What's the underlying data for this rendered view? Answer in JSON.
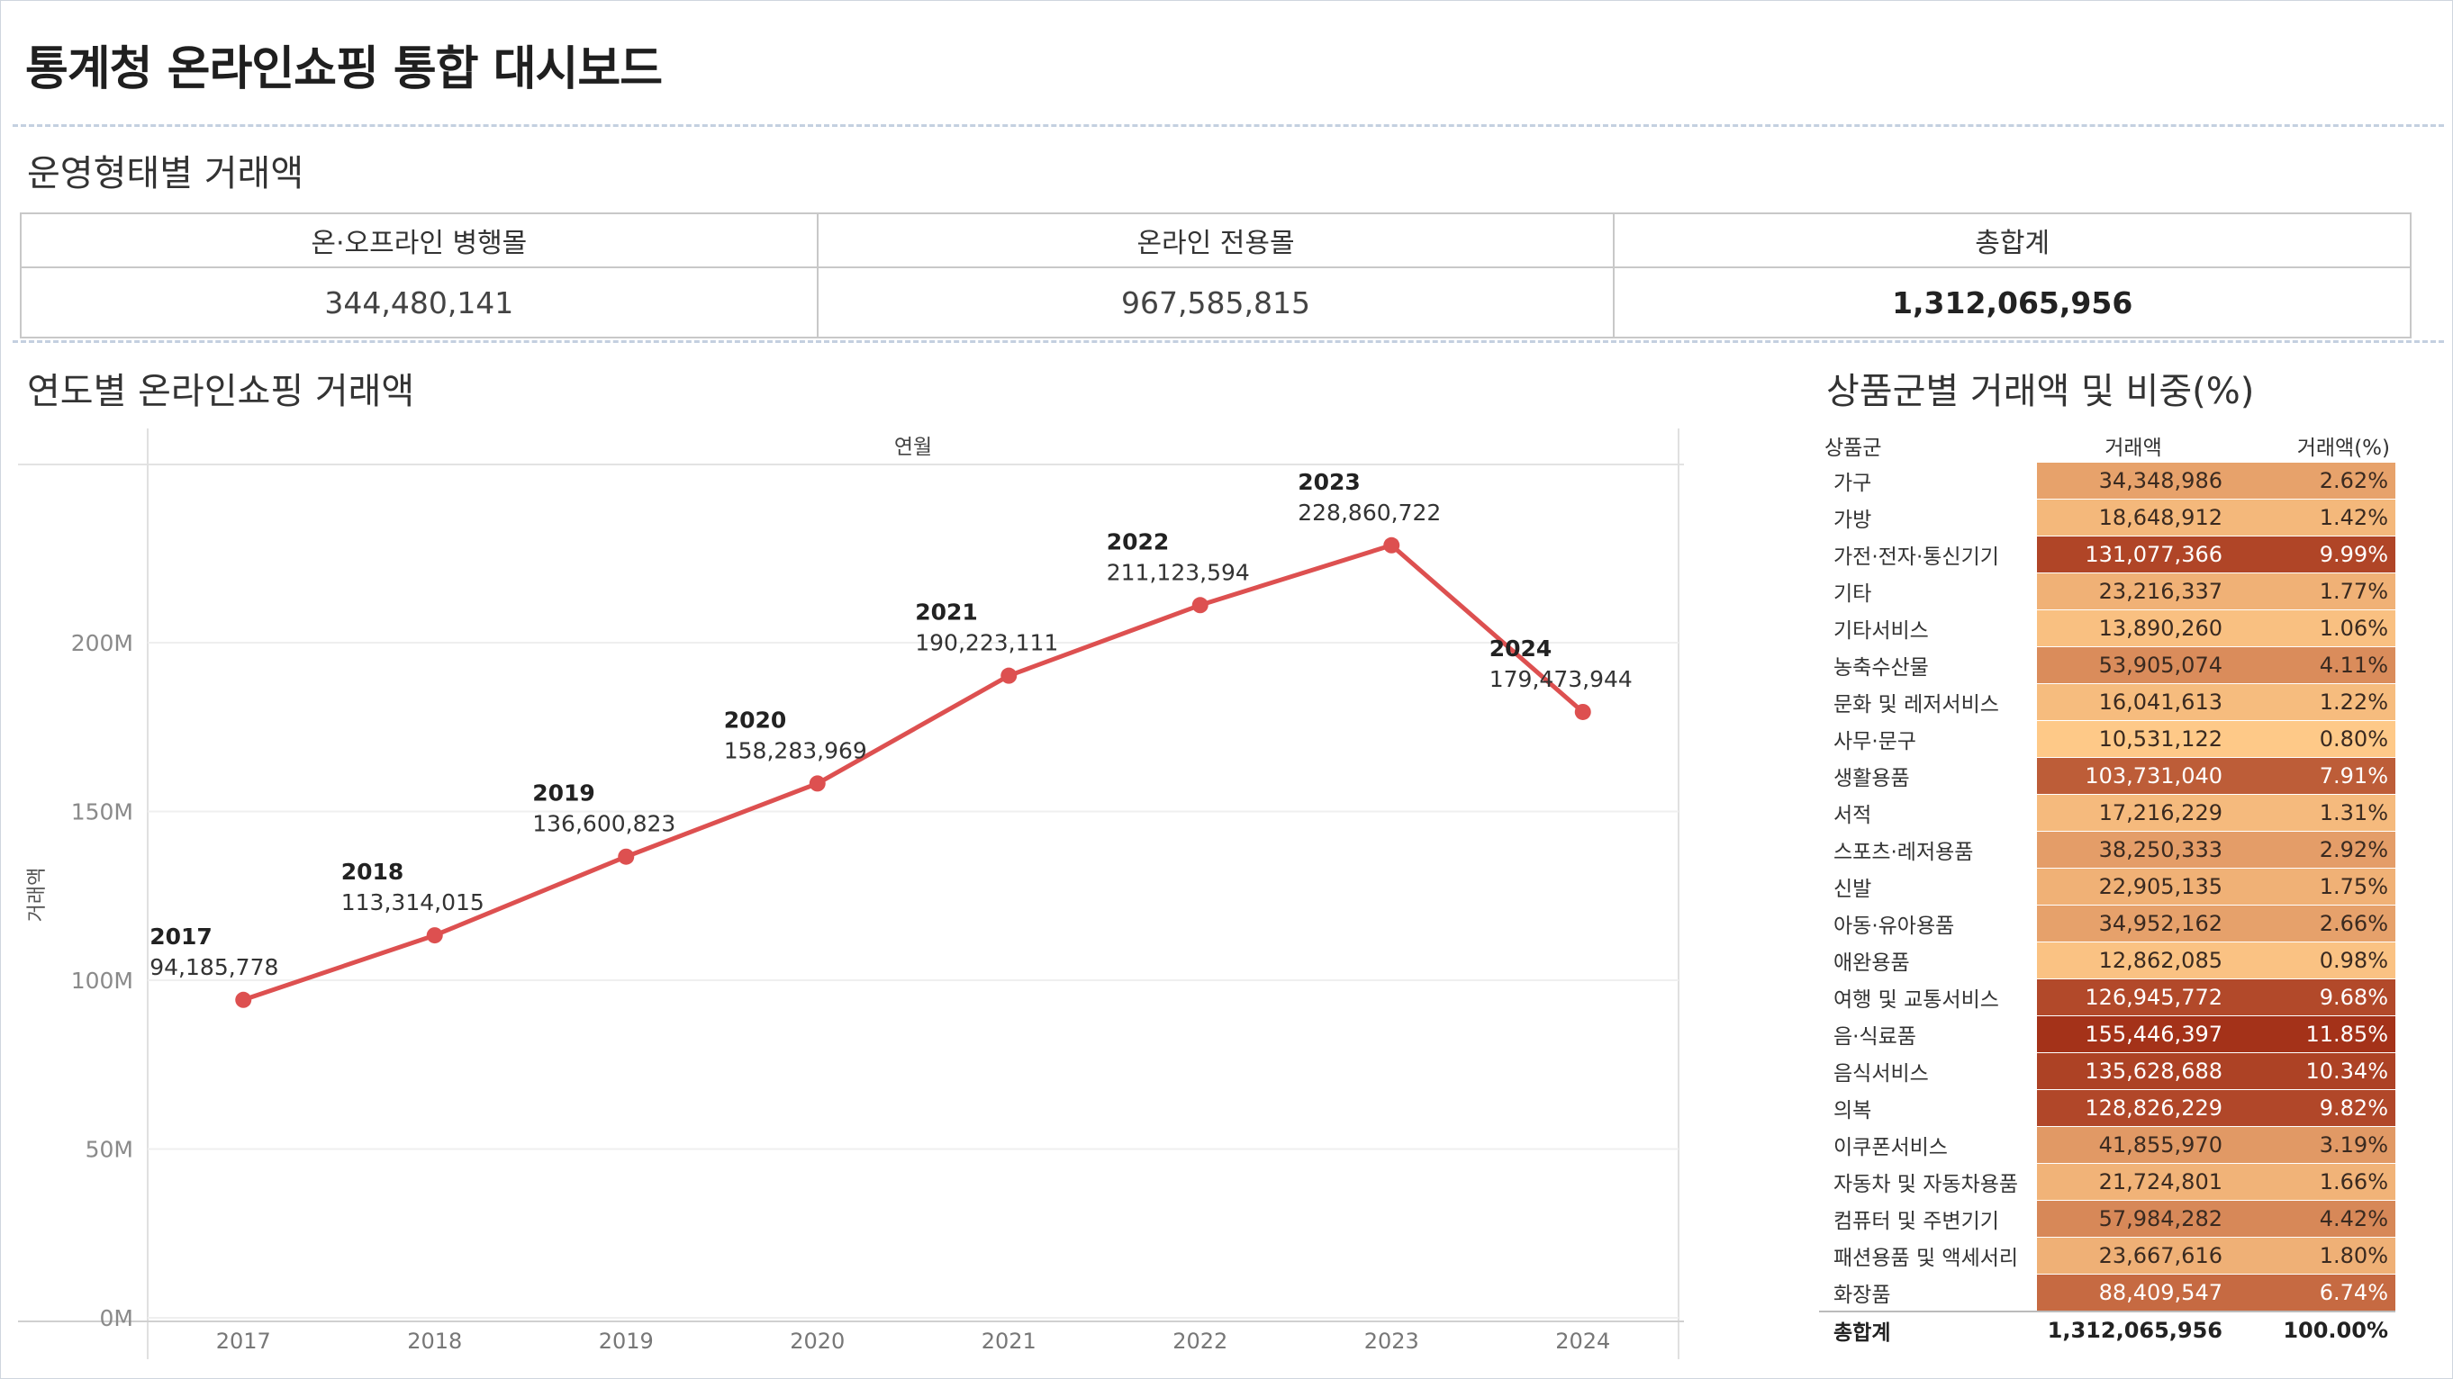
{
  "title": "통계청 온라인쇼핑 통합 대시보드",
  "kpi_section_title": "운영형태별 거래액",
  "kpi": [
    {
      "label": "온·오프라인 병행몰",
      "value": "344,480,141"
    },
    {
      "label": "온라인 전용몰",
      "value": "967,585,815"
    },
    {
      "label": "총합계",
      "value": "1,312,065,956"
    }
  ],
  "line_section_title": "연도별 온라인쇼핑 거래액",
  "category_section_title": "상품군별 거래액 및 비중(%)",
  "chart_data": [
    {
      "type": "line",
      "title": "연도별 온라인쇼핑 거래액",
      "column_header": "연월",
      "xlabel": "",
      "ylabel": "거래액",
      "x": [
        "2017",
        "2018",
        "2019",
        "2020",
        "2021",
        "2022",
        "2023",
        "2024"
      ],
      "series": [
        {
          "values": [
            94185778,
            113314015,
            136600823,
            158283969,
            190223111,
            211123594,
            228860722,
            179473944
          ],
          "labels": [
            "94,185,778",
            "113,314,015",
            "136,600,823",
            "158,283,969",
            "190,223,111",
            "211,123,594",
            "228,860,722",
            "179,473,944"
          ],
          "color": "#dd5050"
        }
      ],
      "ylim": [
        0,
        240000000
      ],
      "yticks": [
        0,
        50000000,
        100000000,
        150000000,
        200000000
      ],
      "ytick_labels": [
        "0M",
        "50M",
        "100M",
        "150M",
        "200M"
      ],
      "grid": true,
      "dual_axis": true
    },
    {
      "type": "table",
      "title": "상품군별 거래액 및 비중(%)",
      "columns": [
        "상품군",
        "거래액",
        "거래액(%)"
      ],
      "rows": [
        {
          "name": "가구",
          "amount": "34,348,986",
          "pct": "2.62%",
          "value": 34348986
        },
        {
          "name": "가방",
          "amount": "18,648,912",
          "pct": "1.42%",
          "value": 18648912
        },
        {
          "name": "가전·전자·통신기기",
          "amount": "131,077,366",
          "pct": "9.99%",
          "value": 131077366
        },
        {
          "name": "기타",
          "amount": "23,216,337",
          "pct": "1.77%",
          "value": 23216337
        },
        {
          "name": "기타서비스",
          "amount": "13,890,260",
          "pct": "1.06%",
          "value": 13890260
        },
        {
          "name": "농축수산물",
          "amount": "53,905,074",
          "pct": "4.11%",
          "value": 53905074
        },
        {
          "name": "문화 및 레저서비스",
          "amount": "16,041,613",
          "pct": "1.22%",
          "value": 16041613
        },
        {
          "name": "사무·문구",
          "amount": "10,531,122",
          "pct": "0.80%",
          "value": 10531122
        },
        {
          "name": "생활용품",
          "amount": "103,731,040",
          "pct": "7.91%",
          "value": 103731040
        },
        {
          "name": "서적",
          "amount": "17,216,229",
          "pct": "1.31%",
          "value": 17216229
        },
        {
          "name": "스포츠·레저용품",
          "amount": "38,250,333",
          "pct": "2.92%",
          "value": 38250333
        },
        {
          "name": "신발",
          "amount": "22,905,135",
          "pct": "1.75%",
          "value": 22905135
        },
        {
          "name": "아동·유아용품",
          "amount": "34,952,162",
          "pct": "2.66%",
          "value": 34952162
        },
        {
          "name": "애완용품",
          "amount": "12,862,085",
          "pct": "0.98%",
          "value": 12862085
        },
        {
          "name": "여행 및 교통서비스",
          "amount": "126,945,772",
          "pct": "9.68%",
          "value": 126945772
        },
        {
          "name": "음·식료품",
          "amount": "155,446,397",
          "pct": "11.85%",
          "value": 155446397
        },
        {
          "name": "음식서비스",
          "amount": "135,628,688",
          "pct": "10.34%",
          "value": 135628688
        },
        {
          "name": "의복",
          "amount": "128,826,229",
          "pct": "9.82%",
          "value": 128826229
        },
        {
          "name": "이쿠폰서비스",
          "amount": "41,855,970",
          "pct": "3.19%",
          "value": 41855970
        },
        {
          "name": "자동차 및 자동차용품",
          "amount": "21,724,801",
          "pct": "1.66%",
          "value": 21724801
        },
        {
          "name": "컴퓨터 및 주변기기",
          "amount": "57,984,282",
          "pct": "4.42%",
          "value": 57984282
        },
        {
          "name": "패션용품 및 액세서리",
          "amount": "23,667,616",
          "pct": "1.80%",
          "value": 23667616
        },
        {
          "name": "화장품",
          "amount": "88,409,547",
          "pct": "6.74%",
          "value": 88409547
        }
      ],
      "total": {
        "name": "총합계",
        "amount": "1,312,065,956",
        "pct": "100.00%"
      },
      "heat_range": [
        10531122,
        155446397
      ]
    }
  ]
}
